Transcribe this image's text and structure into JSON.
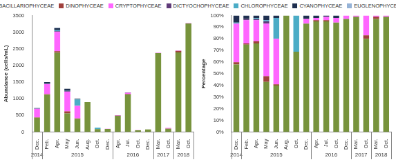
{
  "chart_data": [
    {
      "type": "bar",
      "stacked": true,
      "grid": false,
      "legend": "top",
      "ylabel": "Abundance (cells/mL)",
      "categories": [
        "Dec.",
        "Feb.",
        "Apr.",
        "May",
        "Jun.",
        "Aug.",
        "Oct.",
        "Dec.",
        "Apr.",
        "Jul.",
        "Oct.",
        "Dec.",
        "Mar.",
        "Oct.",
        "Mar.",
        "Oct."
      ],
      "x_groups": [
        {
          "label": "2014",
          "start": 0,
          "end": 0
        },
        {
          "label": "2015",
          "start": 1,
          "end": 7
        },
        {
          "label": "2016",
          "start": 8,
          "end": 11
        },
        {
          "label": "2017",
          "start": 12,
          "end": 13
        },
        {
          "label": "2018",
          "start": 14,
          "end": 15
        }
      ],
      "ylim": [
        0,
        3500
      ],
      "yticks": [
        0,
        500,
        1000,
        1500,
        2000,
        2500,
        3000,
        3500
      ],
      "series": [
        {
          "name": "BACILLARIOPHYCEAE",
          "color": "#77933c",
          "values": [
            430,
            1120,
            2380,
            560,
            400,
            900,
            90,
            95,
            490,
            1130,
            55,
            78,
            2370,
            100,
            2390,
            3260
          ]
        },
        {
          "name": "DINOPHYCEAE",
          "color": "#a0413c",
          "values": [
            10,
            20,
            50,
            60,
            10,
            0,
            0,
            0,
            5,
            10,
            0,
            0,
            0,
            5,
            50,
            0
          ]
        },
        {
          "name": "CRYPTOPHYCEAE",
          "color": "#ff66ff",
          "values": [
            260,
            300,
            580,
            590,
            380,
            0,
            0,
            3,
            10,
            40,
            3,
            2,
            10,
            20,
            10,
            10
          ]
        },
        {
          "name": "DICTYOCHOPHYCEAE",
          "color": "#5f3b7a",
          "values": [
            0,
            10,
            20,
            20,
            0,
            0,
            0,
            0,
            0,
            0,
            0,
            0,
            0,
            0,
            0,
            0
          ]
        },
        {
          "name": "CHLOROPHYCEAE",
          "color": "#4bacc6",
          "values": [
            5,
            10,
            30,
            10,
            190,
            0,
            40,
            0,
            0,
            0,
            0,
            0,
            0,
            0,
            0,
            0
          ]
        },
        {
          "name": "CYANOPHYCEAE",
          "color": "#1f3050",
          "values": [
            15,
            40,
            60,
            60,
            20,
            0,
            0,
            2,
            5,
            10,
            2,
            0,
            0,
            0,
            0,
            0
          ]
        },
        {
          "name": "EUGLENOPHYCEAE",
          "color": "#95b3d7",
          "values": [
            0,
            0,
            10,
            0,
            0,
            0,
            0,
            0,
            0,
            0,
            0,
            0,
            0,
            0,
            0,
            0
          ]
        }
      ]
    },
    {
      "type": "bar",
      "stacked": true,
      "grid": false,
      "legend": "top",
      "ylabel": "Percentage",
      "categories": [
        "Dec.",
        "Feb.",
        "Apr.",
        "May",
        "Jun.",
        "Aug.",
        "Oct.",
        "Dec.",
        "Apr.",
        "Jul.",
        "Oct.",
        "Dec.",
        "Mar.",
        "Oct.",
        "Mar.",
        "Oct."
      ],
      "x_groups": [
        {
          "label": "2014",
          "start": 0,
          "end": 0
        },
        {
          "label": "2015",
          "start": 1,
          "end": 7
        },
        {
          "label": "2016",
          "start": 8,
          "end": 11
        },
        {
          "label": "2017",
          "start": 12,
          "end": 13
        },
        {
          "label": "2018",
          "start": 14,
          "end": 15
        }
      ],
      "ylim": [
        0,
        100
      ],
      "yticks": [
        {
          "value": 0,
          "label": "0%"
        },
        {
          "value": 10,
          "label": "10%"
        },
        {
          "value": 20,
          "label": "20%"
        },
        {
          "value": 30,
          "label": "30%"
        },
        {
          "value": 40,
          "label": "40%"
        },
        {
          "value": 50,
          "label": "50%"
        },
        {
          "value": 60,
          "label": "60%"
        },
        {
          "value": 70,
          "label": "70%"
        },
        {
          "value": 80,
          "label": "80%"
        },
        {
          "value": 90,
          "label": "90%"
        },
        {
          "value": 100,
          "label": "100%"
        }
      ],
      "series": [
        {
          "name": "BACILLARIOPHYCEAE",
          "color": "#77933c",
          "values": [
            58,
            75,
            76,
            43,
            40,
            100,
            69,
            93,
            95,
            95,
            94,
            97,
            99,
            80,
            97,
            99
          ]
        },
        {
          "name": "DINOPHYCEAE",
          "color": "#a0413c",
          "values": [
            2,
            1,
            2,
            5,
            1,
            0,
            0,
            0,
            1,
            1,
            0,
            0,
            0,
            3,
            2,
            0
          ]
        },
        {
          "name": "CRYPTOPHYCEAE",
          "color": "#ff66ff",
          "values": [
            33,
            20,
            18,
            45,
            39,
            0,
            0,
            4,
            2,
            3,
            4,
            3,
            1,
            17,
            1,
            1
          ]
        },
        {
          "name": "DICTYOCHOPHYCEAE",
          "color": "#5f3b7a",
          "values": [
            0,
            1,
            1,
            2,
            0,
            0,
            0,
            0,
            0,
            0,
            0,
            0,
            0,
            0,
            0,
            0
          ]
        },
        {
          "name": "CHLOROPHYCEAE",
          "color": "#4bacc6",
          "values": [
            1,
            0,
            1,
            1,
            18,
            0,
            31,
            0,
            0,
            0,
            0,
            0,
            0,
            0,
            0,
            0
          ]
        },
        {
          "name": "CYANOPHYCEAE",
          "color": "#1f3050",
          "values": [
            6,
            3,
            2,
            4,
            2,
            0,
            0,
            3,
            2,
            1,
            2,
            0,
            0,
            0,
            0,
            0
          ]
        },
        {
          "name": "EUGLENOPHYCEAE",
          "color": "#95b3d7",
          "values": [
            0,
            0,
            0,
            0,
            0,
            0,
            0,
            0,
            0,
            0,
            0,
            0,
            0,
            0,
            0,
            0
          ]
        }
      ]
    }
  ]
}
